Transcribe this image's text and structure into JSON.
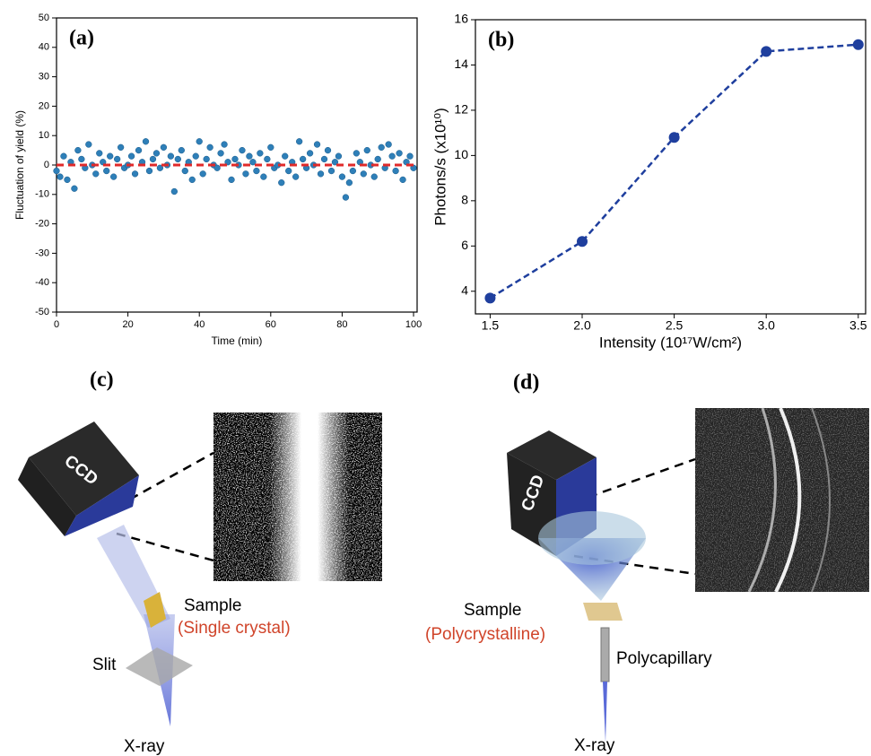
{
  "chart_data": [
    {
      "type": "scatter",
      "label": "(a)",
      "x_label": "Time (min)",
      "y_label": "Fluctuation of yield (%)",
      "color": "#2e7fb8",
      "x": [
        0,
        1,
        2,
        3,
        4,
        5,
        6,
        7,
        8,
        9,
        10,
        11,
        12,
        13,
        14,
        15,
        16,
        17,
        18,
        19,
        20,
        21,
        22,
        23,
        24,
        25,
        26,
        27,
        28,
        29,
        30,
        31,
        32,
        33,
        34,
        35,
        36,
        37,
        38,
        39,
        40,
        41,
        42,
        43,
        44,
        45,
        46,
        47,
        48,
        49,
        50,
        51,
        52,
        53,
        54,
        55,
        56,
        57,
        58,
        59,
        60,
        61,
        62,
        63,
        64,
        65,
        66,
        67,
        68,
        69,
        70,
        71,
        72,
        73,
        74,
        75,
        76,
        77,
        78,
        79,
        80,
        81,
        82,
        83,
        84,
        85,
        86,
        87,
        88,
        89,
        90,
        91,
        92,
        93,
        94,
        95,
        96,
        97,
        98,
        99,
        100
      ],
      "values": [
        -2,
        -4,
        3,
        -5,
        1,
        -8,
        5,
        2,
        -1,
        7,
        0,
        -3,
        4,
        1,
        -2,
        3,
        -4,
        2,
        6,
        -1,
        0,
        3,
        -3,
        5,
        1,
        8,
        -2,
        2,
        4,
        -1,
        6,
        0,
        3,
        -9,
        2,
        5,
        -2,
        1,
        -5,
        3,
        8,
        -3,
        2,
        6,
        0,
        -1,
        4,
        7,
        1,
        -5,
        2,
        0,
        5,
        -3,
        3,
        1,
        -2,
        4,
        -4,
        2,
        6,
        -1,
        0,
        -6,
        3,
        -2,
        1,
        -4,
        8,
        2,
        -1,
        4,
        0,
        7,
        -3,
        2,
        5,
        -2,
        1,
        3,
        -4,
        -11,
        -6,
        -2,
        4,
        1,
        -3,
        5,
        0,
        -4,
        2,
        6,
        -1,
        7,
        3,
        -2,
        4,
        -5,
        1,
        3,
        -1
      ],
      "reference_line": {
        "value": 0,
        "color": "#e02a2a"
      },
      "xlim": [
        0,
        101
      ],
      "xticks": [
        0,
        20,
        40,
        60,
        80,
        100
      ],
      "ylim": [
        -50,
        50
      ],
      "yticks": [
        -50,
        -40,
        -30,
        -20,
        -10,
        0,
        10,
        20,
        30,
        40,
        50
      ]
    },
    {
      "type": "line",
      "label": "(b)",
      "x_label": "Intensity (10¹⁷W/cm²)",
      "y_label": "Photons/s (x10¹⁰)",
      "color": "#1f3f9e",
      "x": [
        1.5,
        2.0,
        2.5,
        3.0,
        3.5
      ],
      "values": [
        3.7,
        6.2,
        10.8,
        14.6,
        14.9
      ],
      "xlim": [
        1.42,
        3.54
      ],
      "xticks": [
        {
          "value": 1.5,
          "label": "1.5"
        },
        {
          "value": 2.0,
          "label": "2.0"
        },
        {
          "value": 2.5,
          "label": "2.5"
        },
        {
          "value": 3.0,
          "label": "3.0"
        },
        {
          "value": 3.5,
          "label": "3.5"
        }
      ],
      "ylim": [
        3,
        16
      ],
      "yticks": [
        4,
        6,
        8,
        10,
        12,
        14,
        16
      ]
    }
  ],
  "diagrams": [
    {
      "label": "(c)",
      "detector": "CCD",
      "sample": "Sample",
      "sample_type": "(Single crystal)",
      "slit": "Slit",
      "source": "X-ray"
    },
    {
      "label": "(d)",
      "detector": "CCD",
      "sample": "Sample",
      "sample_type": "(Polycrystalline)",
      "optic": "Polycapillary",
      "source": "X-ray"
    }
  ]
}
